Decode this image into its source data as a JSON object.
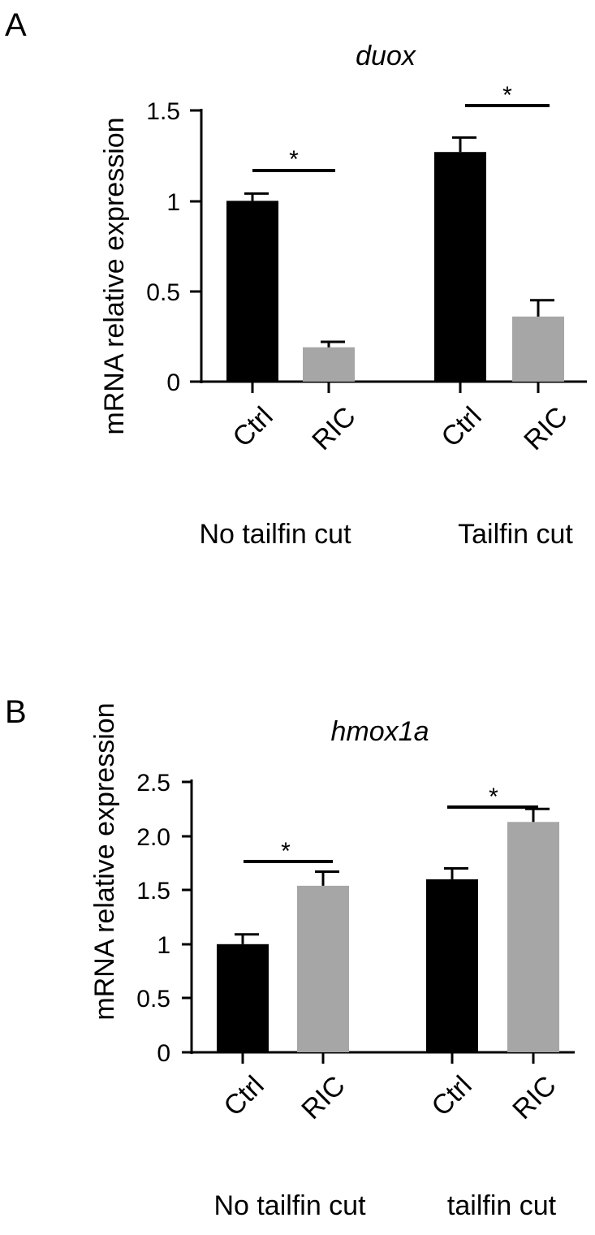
{
  "colors": {
    "ctrl": "#000000",
    "ric": "#a6a6a6",
    "axis": "#000000"
  },
  "chart_data": [
    {
      "panel": "A",
      "type": "bar",
      "title": "duox",
      "ylabel": "mRNA relative expression",
      "ylim": [
        0,
        1.5
      ],
      "yticks": [
        "0",
        "0.5",
        "1",
        "1.5"
      ],
      "ytick_values": [
        0,
        0.5,
        1,
        1.5
      ],
      "groups": [
        {
          "label": "No tailfin cut",
          "significance": "*"
        },
        {
          "label": "Tailfin cut",
          "significance": "*"
        }
      ],
      "categories": [
        "Ctrl",
        "RIC",
        "Ctrl",
        "RIC"
      ],
      "series": [
        {
          "values": [
            1.0,
            0.19,
            1.27,
            0.36
          ],
          "errors": [
            0.04,
            0.03,
            0.08,
            0.09
          ]
        }
      ]
    },
    {
      "panel": "B",
      "type": "bar",
      "title": "hmox1a",
      "ylabel": "mRNA relative expression",
      "ylim": [
        0,
        2.5
      ],
      "yticks": [
        "0",
        "0.5",
        "1",
        "1.5",
        "2.0",
        "2.5"
      ],
      "ytick_values": [
        0,
        0.5,
        1,
        1.5,
        2.0,
        2.5
      ],
      "groups": [
        {
          "label": "No tailfin cut",
          "significance": "*"
        },
        {
          "label": "tailfin cut",
          "significance": "*"
        }
      ],
      "categories": [
        "Ctrl",
        "RIC",
        "Ctrl",
        "RIC"
      ],
      "series": [
        {
          "values": [
            1.0,
            1.54,
            1.6,
            2.13
          ],
          "errors": [
            0.09,
            0.13,
            0.1,
            0.12
          ]
        }
      ]
    }
  ]
}
